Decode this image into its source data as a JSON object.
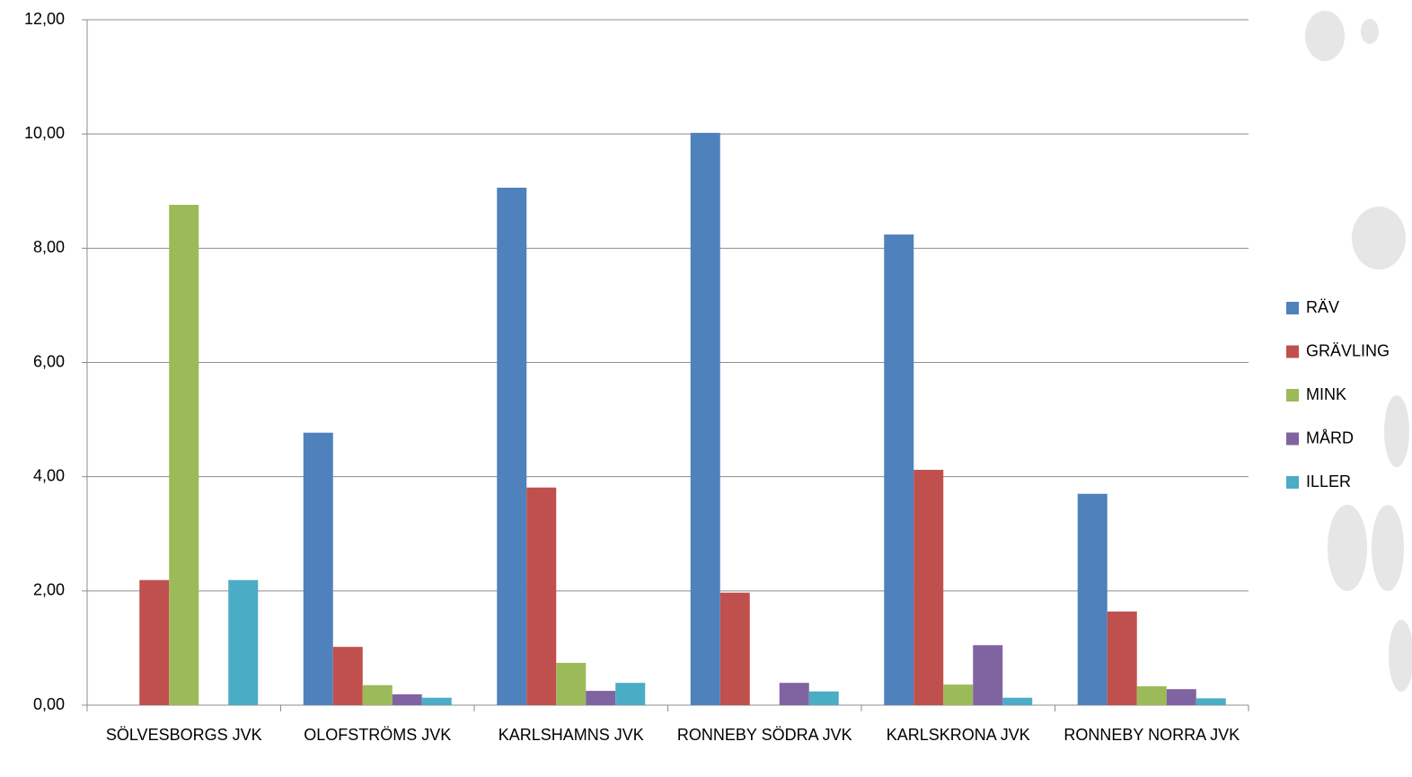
{
  "chart_data": {
    "type": "bar",
    "categories": [
      "SÖLVESBORGS JVK",
      "OLOFSTRÖMS JVK",
      "KARLSHAMNS JVK",
      "RONNEBY SÖDRA JVK",
      "KARLSKRONA JVK",
      "RONNEBY NORRA JVK"
    ],
    "series": [
      {
        "name": "RÄV",
        "color": "#4f81bd",
        "values": [
          0,
          4.77,
          9.06,
          10.02,
          8.24,
          3.7
        ]
      },
      {
        "name": "GRÄVLING",
        "color": "#c0504d",
        "values": [
          2.19,
          1.02,
          3.81,
          1.97,
          4.12,
          1.64
        ]
      },
      {
        "name": "MINK",
        "color": "#9bbb59",
        "values": [
          8.76,
          0.35,
          0.74,
          0,
          0.36,
          0.33
        ]
      },
      {
        "name": "MÅRD",
        "color": "#8064a2",
        "values": [
          0,
          0.19,
          0.25,
          0.39,
          1.05,
          0.28
        ]
      },
      {
        "name": "ILLER",
        "color": "#4bacc6",
        "values": [
          2.19,
          0.13,
          0.39,
          0.24,
          0.13,
          0.12
        ]
      }
    ],
    "ylim": [
      0,
      12
    ],
    "yticks": [
      {
        "value": 0,
        "label": "0,00"
      },
      {
        "value": 2,
        "label": "2,00"
      },
      {
        "value": 4,
        "label": "4,00"
      },
      {
        "value": 6,
        "label": "6,00"
      },
      {
        "value": 8,
        "label": "8,00"
      },
      {
        "value": 10,
        "label": "10,00"
      },
      {
        "value": 12,
        "label": "12,00"
      }
    ],
    "grid": true,
    "legend": "right"
  }
}
